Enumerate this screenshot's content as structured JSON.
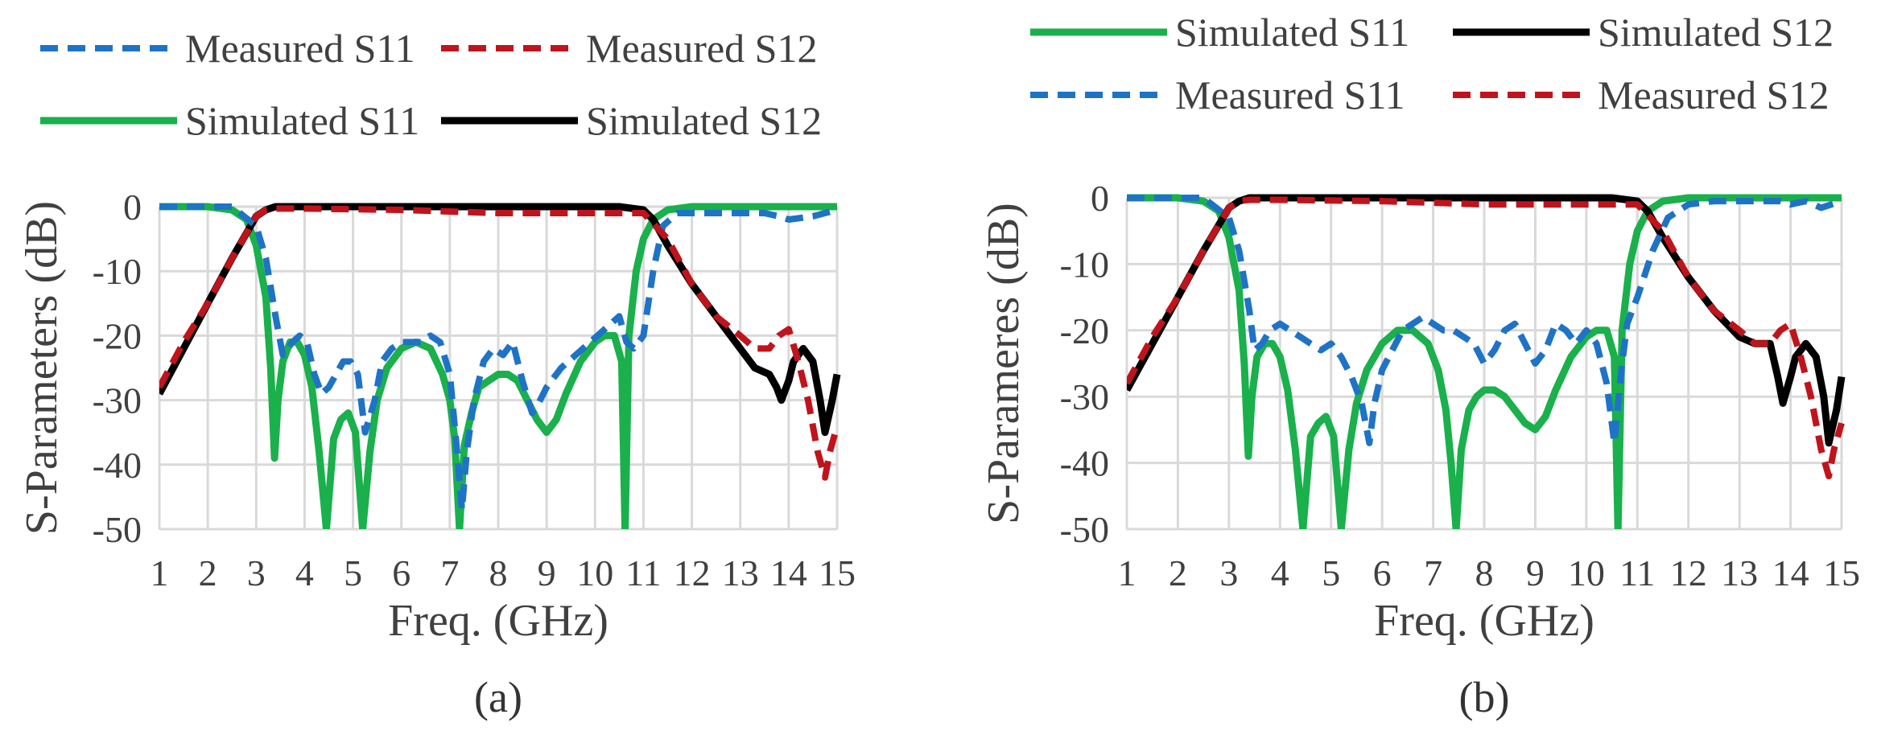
{
  "chart_data": [
    {
      "type": "line",
      "caption": "(a)",
      "xlabel": "Freq. (GHz)",
      "ylabel": "S-Parameters (dB)",
      "xlim": [
        1,
        15
      ],
      "ylim": [
        -50,
        0
      ],
      "xticks": [
        1,
        2,
        3,
        4,
        5,
        6,
        7,
        8,
        9,
        10,
        11,
        12,
        13,
        14,
        15
      ],
      "yticks": [
        0,
        -10,
        -20,
        -30,
        -40,
        -50
      ],
      "grid": true,
      "legend_position": "top",
      "legend_rows": [
        [
          "Measured S11",
          "Measured S12"
        ],
        [
          "Simulated S11",
          "Simulated S12"
        ]
      ],
      "series": [
        {
          "name": "Simulated S11",
          "color": "#1ab04c",
          "dash": "solid",
          "x": [
            1,
            2,
            2.5,
            2.8,
            3,
            3.2,
            3.3,
            3.38,
            3.45,
            3.55,
            3.7,
            3.85,
            4,
            4.15,
            4.3,
            4.45,
            4.6,
            4.75,
            4.9,
            5.05,
            5.2,
            5.35,
            5.5,
            5.7,
            6,
            6.3,
            6.6,
            6.85,
            7,
            7.1,
            7.2,
            7.3,
            7.45,
            7.6,
            7.8,
            8,
            8.2,
            8.4,
            8.6,
            8.8,
            9,
            9.2,
            9.4,
            9.7,
            10,
            10.2,
            10.4,
            10.55,
            10.62,
            10.7,
            10.85,
            11,
            11.2,
            11.5,
            12,
            13,
            14,
            15
          ],
          "y": [
            0,
            0,
            -0.5,
            -2,
            -6,
            -14,
            -25,
            -39,
            -30,
            -24,
            -21,
            -21,
            -23,
            -28,
            -38,
            -50,
            -36,
            -33,
            -32,
            -35,
            -50,
            -38,
            -30,
            -25,
            -22,
            -21,
            -22,
            -26,
            -30,
            -36,
            -50,
            -37,
            -32,
            -28,
            -27,
            -26,
            -26,
            -27,
            -30,
            -33,
            -35,
            -33,
            -29,
            -24,
            -21,
            -20,
            -20,
            -24,
            -50,
            -20,
            -10,
            -5,
            -2,
            -0.5,
            0,
            0,
            0,
            0
          ]
        },
        {
          "name": "Simulated S12",
          "color": "#000000",
          "dash": "solid",
          "x": [
            1,
            1.5,
            2,
            2.5,
            3,
            3.2,
            3.4,
            3.6,
            4,
            6,
            8,
            10,
            10.5,
            11,
            11.2,
            11.5,
            12,
            12.5,
            13,
            13.3,
            13.6,
            13.75,
            13.85,
            14,
            14.1,
            14.3,
            14.5,
            14.65,
            14.75,
            14.9,
            15
          ],
          "y": [
            -29,
            -22,
            -15,
            -8,
            -1.5,
            -0.5,
            0,
            0,
            0,
            0,
            0,
            0,
            0,
            -0.5,
            -2,
            -6,
            -12,
            -17,
            -22,
            -25,
            -26,
            -28,
            -30,
            -27,
            -24,
            -22,
            -24,
            -30,
            -35,
            -30,
            -26
          ]
        },
        {
          "name": "Measured S11",
          "color": "#1f73c6",
          "dash": "dashed",
          "x": [
            1,
            2.5,
            3,
            3.2,
            3.4,
            3.55,
            3.75,
            3.9,
            4.05,
            4.2,
            4.35,
            4.5,
            4.65,
            4.8,
            4.95,
            5.1,
            5.25,
            5.45,
            5.6,
            5.8,
            6,
            6.2,
            6.4,
            6.6,
            6.8,
            7,
            7.15,
            7.25,
            7.35,
            7.5,
            7.7,
            7.9,
            8.1,
            8.3,
            8.5,
            8.7,
            8.8,
            9,
            9.3,
            9.6,
            9.9,
            10.2,
            10.5,
            10.65,
            10.8,
            11,
            11.2,
            11.4,
            11.7,
            12,
            12.5,
            13,
            13.5,
            13.8,
            14,
            14.5,
            15
          ],
          "y": [
            0,
            0,
            -3,
            -8,
            -17,
            -23,
            -21,
            -20,
            -21,
            -26,
            -29,
            -28,
            -26,
            -24,
            -24,
            -26,
            -35,
            -30,
            -24,
            -22,
            -21,
            -21,
            -21,
            -20,
            -21,
            -26,
            -38,
            -47,
            -38,
            -30,
            -24,
            -22,
            -23,
            -21,
            -27,
            -32,
            -31,
            -28,
            -25,
            -23,
            -21,
            -19,
            -17,
            -21,
            -22,
            -20,
            -10,
            -3,
            -1,
            -1,
            -1,
            -1,
            -1,
            -1.5,
            -2,
            -1.5,
            -0.5
          ]
        },
        {
          "name": "Measured S12",
          "color": "#c0141c",
          "dash": "dashed",
          "x": [
            1,
            1.5,
            2,
            2.5,
            3,
            3.2,
            3.4,
            4,
            6,
            8,
            10,
            11,
            11.5,
            12,
            12.5,
            13,
            13.3,
            13.6,
            13.8,
            14,
            14.2,
            14.4,
            14.6,
            14.75,
            14.85,
            15
          ],
          "y": [
            -28,
            -21,
            -15,
            -8,
            -1.5,
            -0.5,
            -0.3,
            -0.3,
            -0.5,
            -1,
            -1,
            -1,
            -5,
            -12,
            -17,
            -20,
            -22,
            -22,
            -20,
            -19,
            -24,
            -30,
            -38,
            -42,
            -38,
            -34
          ]
        }
      ]
    },
    {
      "type": "line",
      "caption": "(b)",
      "xlabel": "Freq. (GHz)",
      "ylabel": "S-Parameres (dB)",
      "xlim": [
        1,
        15
      ],
      "ylim": [
        -50,
        0
      ],
      "xticks": [
        1,
        2,
        3,
        4,
        5,
        6,
        7,
        8,
        9,
        10,
        11,
        12,
        13,
        14,
        15
      ],
      "yticks": [
        0,
        -10,
        -20,
        -30,
        -40,
        -50
      ],
      "grid": true,
      "legend_position": "top",
      "legend_rows": [
        [
          "Simulated S11",
          "Simulated S12"
        ],
        [
          "Measured S11",
          "Measured S12"
        ]
      ],
      "series": [
        {
          "name": "Simulated S11",
          "color": "#1ab04c",
          "dash": "solid",
          "x": [
            1,
            2,
            2.5,
            2.8,
            3,
            3.2,
            3.3,
            3.38,
            3.45,
            3.55,
            3.7,
            3.85,
            4,
            4.15,
            4.3,
            4.45,
            4.6,
            4.75,
            4.9,
            5.05,
            5.2,
            5.35,
            5.5,
            5.7,
            6,
            6.3,
            6.6,
            6.9,
            7.1,
            7.25,
            7.35,
            7.45,
            7.55,
            7.7,
            7.85,
            8,
            8.2,
            8.4,
            8.6,
            8.8,
            9,
            9.2,
            9.4,
            9.7,
            10,
            10.2,
            10.4,
            10.55,
            10.62,
            10.7,
            10.85,
            11,
            11.2,
            11.5,
            12,
            13,
            14,
            15
          ],
          "y": [
            0,
            0,
            -0.5,
            -2,
            -6,
            -14,
            -25,
            -39,
            -30,
            -24,
            -22,
            -22,
            -24,
            -29,
            -38,
            -50,
            -36,
            -34,
            -33,
            -36,
            -50,
            -38,
            -31,
            -26,
            -22,
            -20,
            -20,
            -22,
            -26,
            -32,
            -40,
            -50,
            -38,
            -32,
            -30,
            -29,
            -29,
            -30,
            -32,
            -34,
            -35,
            -33,
            -29,
            -24,
            -21,
            -20,
            -20,
            -24,
            -50,
            -20,
            -10,
            -5,
            -2,
            -0.5,
            0,
            0,
            0,
            0
          ]
        },
        {
          "name": "Simulated S12",
          "color": "#000000",
          "dash": "solid",
          "x": [
            1,
            1.5,
            2,
            2.5,
            3,
            3.2,
            3.4,
            3.6,
            4,
            6,
            8,
            10,
            10.5,
            11,
            11.2,
            11.5,
            12,
            12.5,
            13,
            13.3,
            13.6,
            13.75,
            13.85,
            14,
            14.1,
            14.3,
            14.5,
            14.65,
            14.75,
            14.9,
            15
          ],
          "y": [
            -29,
            -22,
            -15,
            -8,
            -1.5,
            -0.5,
            0,
            0,
            0,
            0,
            0,
            0,
            0,
            -0.5,
            -2,
            -6,
            -12,
            -17,
            -21,
            -22,
            -22,
            -27,
            -31,
            -27,
            -24,
            -22,
            -24,
            -30,
            -37,
            -32,
            -27
          ]
        },
        {
          "name": "Measured S11",
          "color": "#1f73c6",
          "dash": "dashed",
          "x": [
            1,
            2.5,
            3,
            3.2,
            3.4,
            3.5,
            3.65,
            3.8,
            4,
            4.2,
            4.4,
            4.6,
            4.8,
            5,
            5.2,
            5.4,
            5.6,
            5.75,
            5.85,
            6,
            6.2,
            6.4,
            6.6,
            6.8,
            7,
            7.2,
            7.4,
            7.6,
            7.8,
            8,
            8.2,
            8.4,
            8.6,
            8.8,
            9,
            9.2,
            9.4,
            9.6,
            9.8,
            10,
            10.2,
            10.4,
            10.55,
            10.7,
            10.8,
            11,
            11.3,
            11.6,
            12,
            12.5,
            13,
            13.5,
            13.8,
            14,
            14.3,
            14.6,
            15
          ],
          "y": [
            0,
            0,
            -3,
            -8,
            -17,
            -23,
            -22,
            -20,
            -19,
            -20,
            -21,
            -22,
            -23,
            -22,
            -24,
            -27,
            -31,
            -37,
            -31,
            -26,
            -23,
            -20,
            -19,
            -18,
            -19,
            -20,
            -20,
            -21,
            -22,
            -25,
            -23,
            -20,
            -19,
            -22,
            -25,
            -23,
            -19,
            -20,
            -22,
            -20,
            -22,
            -28,
            -37,
            -25,
            -19,
            -15,
            -8,
            -3,
            -1,
            -0.5,
            -0.5,
            -0.5,
            -0.5,
            -1,
            -0.5,
            -1.5,
            -0.5
          ]
        },
        {
          "name": "Measured S12",
          "color": "#c0141c",
          "dash": "dashed",
          "x": [
            1,
            1.5,
            2,
            2.5,
            3,
            3.2,
            3.4,
            4,
            6,
            8,
            10,
            11,
            11.5,
            12,
            12.5,
            13,
            13.3,
            13.6,
            13.8,
            14,
            14.2,
            14.4,
            14.6,
            14.75,
            14.85,
            15
          ],
          "y": [
            -28,
            -21,
            -15,
            -8,
            -1.5,
            -0.5,
            -0.3,
            -0.3,
            -0.5,
            -1,
            -1,
            -1,
            -5,
            -12,
            -17,
            -20,
            -22,
            -22,
            -20,
            -19,
            -24,
            -30,
            -38,
            -42,
            -38,
            -34
          ]
        }
      ]
    }
  ]
}
